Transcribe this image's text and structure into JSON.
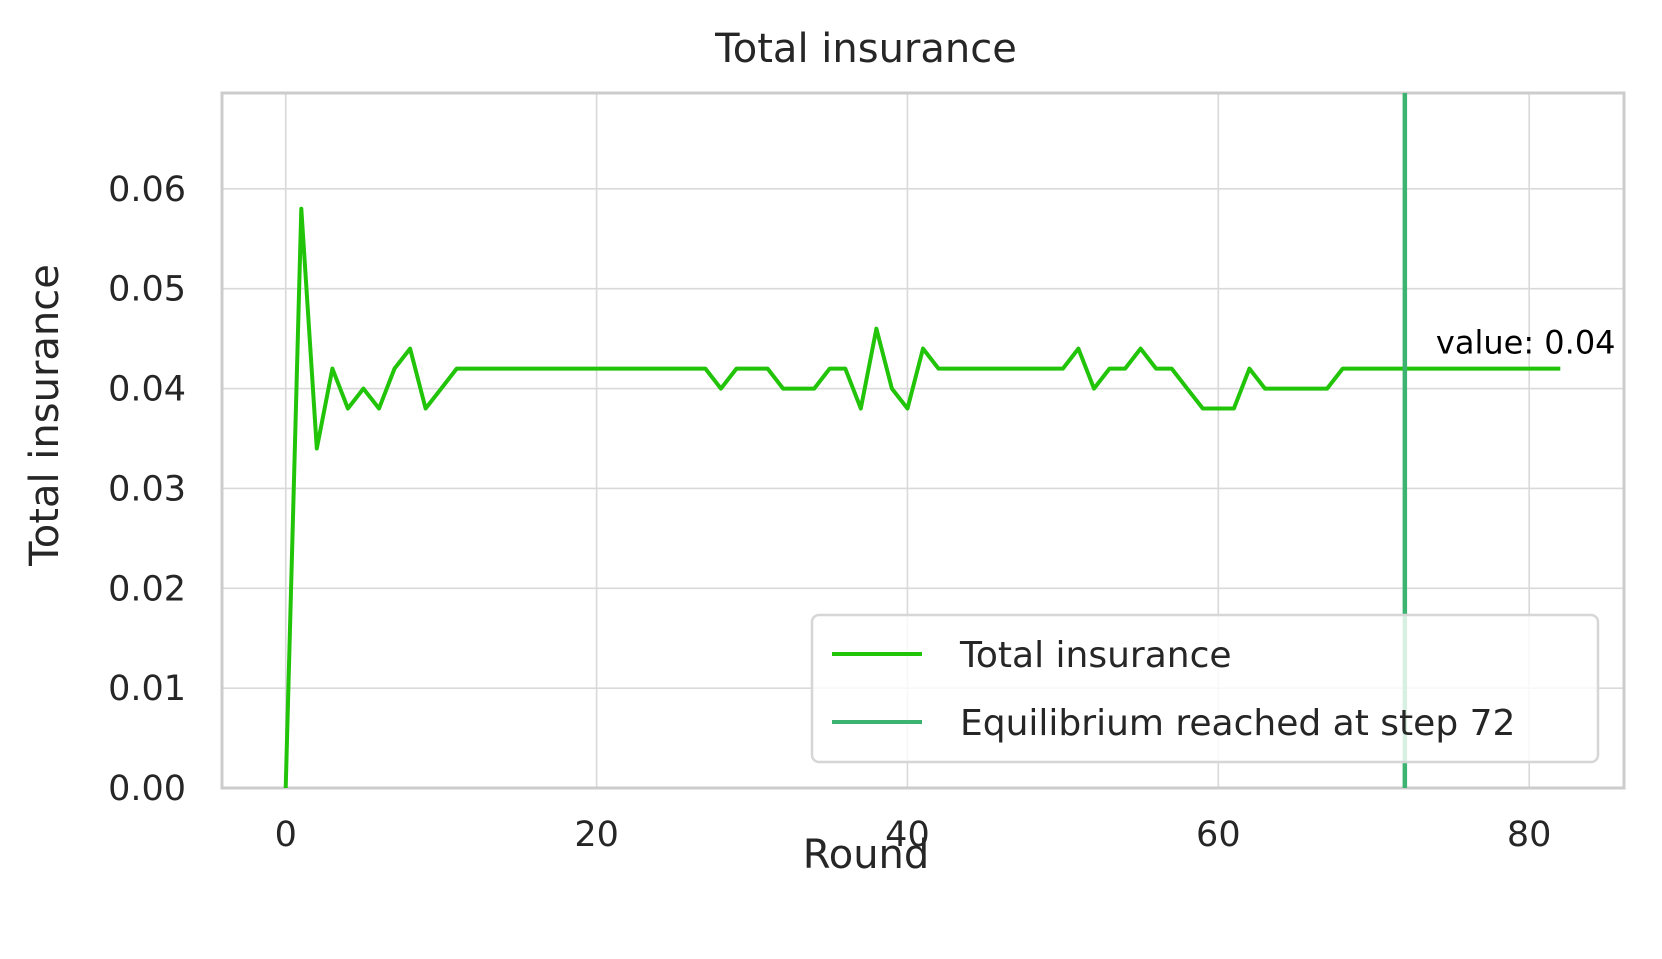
{
  "chart_data": {
    "type": "line",
    "title": "Total insurance",
    "xlabel": "Round",
    "ylabel": "Total insurance",
    "xlim": [
      -4.1,
      86.1
    ],
    "ylim": [
      0,
      0.0696
    ],
    "xticks": [
      0,
      20,
      40,
      60,
      80
    ],
    "xtick_labels": [
      "0",
      "20",
      "40",
      "60",
      "80"
    ],
    "yticks": [
      0,
      0.01,
      0.02,
      0.03,
      0.04,
      0.05,
      0.06
    ],
    "ytick_labels": [
      "0.00",
      "0.01",
      "0.02",
      "0.03",
      "0.04",
      "0.05",
      "0.06"
    ],
    "grid": true,
    "legend_position": "lower-right",
    "series": [
      {
        "name": "Total insurance",
        "color": "#22c40a",
        "x": [
          0,
          1,
          2,
          3,
          4,
          5,
          6,
          7,
          8,
          9,
          10,
          11,
          12,
          13,
          14,
          15,
          16,
          17,
          18,
          19,
          20,
          21,
          22,
          23,
          24,
          25,
          26,
          27,
          28,
          29,
          30,
          31,
          32,
          33,
          34,
          35,
          36,
          37,
          38,
          39,
          40,
          41,
          42,
          43,
          44,
          45,
          46,
          47,
          48,
          49,
          50,
          51,
          52,
          53,
          54,
          55,
          56,
          57,
          58,
          59,
          60,
          61,
          62,
          63,
          64,
          65,
          66,
          67,
          68,
          69,
          70,
          71,
          72,
          73,
          74,
          75,
          76,
          77,
          78,
          79,
          80,
          81,
          82
        ],
        "y": [
          0,
          0.058,
          0.034,
          0.042,
          0.038,
          0.04,
          0.038,
          0.042,
          0.044,
          0.038,
          0.04,
          0.042,
          0.042,
          0.042,
          0.042,
          0.042,
          0.042,
          0.042,
          0.042,
          0.042,
          0.042,
          0.042,
          0.042,
          0.042,
          0.042,
          0.042,
          0.042,
          0.042,
          0.04,
          0.042,
          0.042,
          0.042,
          0.04,
          0.04,
          0.04,
          0.042,
          0.042,
          0.038,
          0.046,
          0.04,
          0.038,
          0.044,
          0.042,
          0.042,
          0.042,
          0.042,
          0.042,
          0.042,
          0.042,
          0.042,
          0.042,
          0.044,
          0.04,
          0.042,
          0.042,
          0.044,
          0.042,
          0.042,
          0.04,
          0.038,
          0.038,
          0.038,
          0.042,
          0.04,
          0.04,
          0.04,
          0.04,
          0.04,
          0.042,
          0.042,
          0.042,
          0.042,
          0.042,
          0.042,
          0.042,
          0.042,
          0.042,
          0.042,
          0.042,
          0.042,
          0.042,
          0.042,
          0.042
        ]
      },
      {
        "name": "Equilibrium reached at step 72",
        "color": "#3cb371",
        "vline_x": 72
      }
    ],
    "annotations": [
      {
        "text": "value: 0.04",
        "x": 74,
        "y": 0.0435
      }
    ]
  }
}
